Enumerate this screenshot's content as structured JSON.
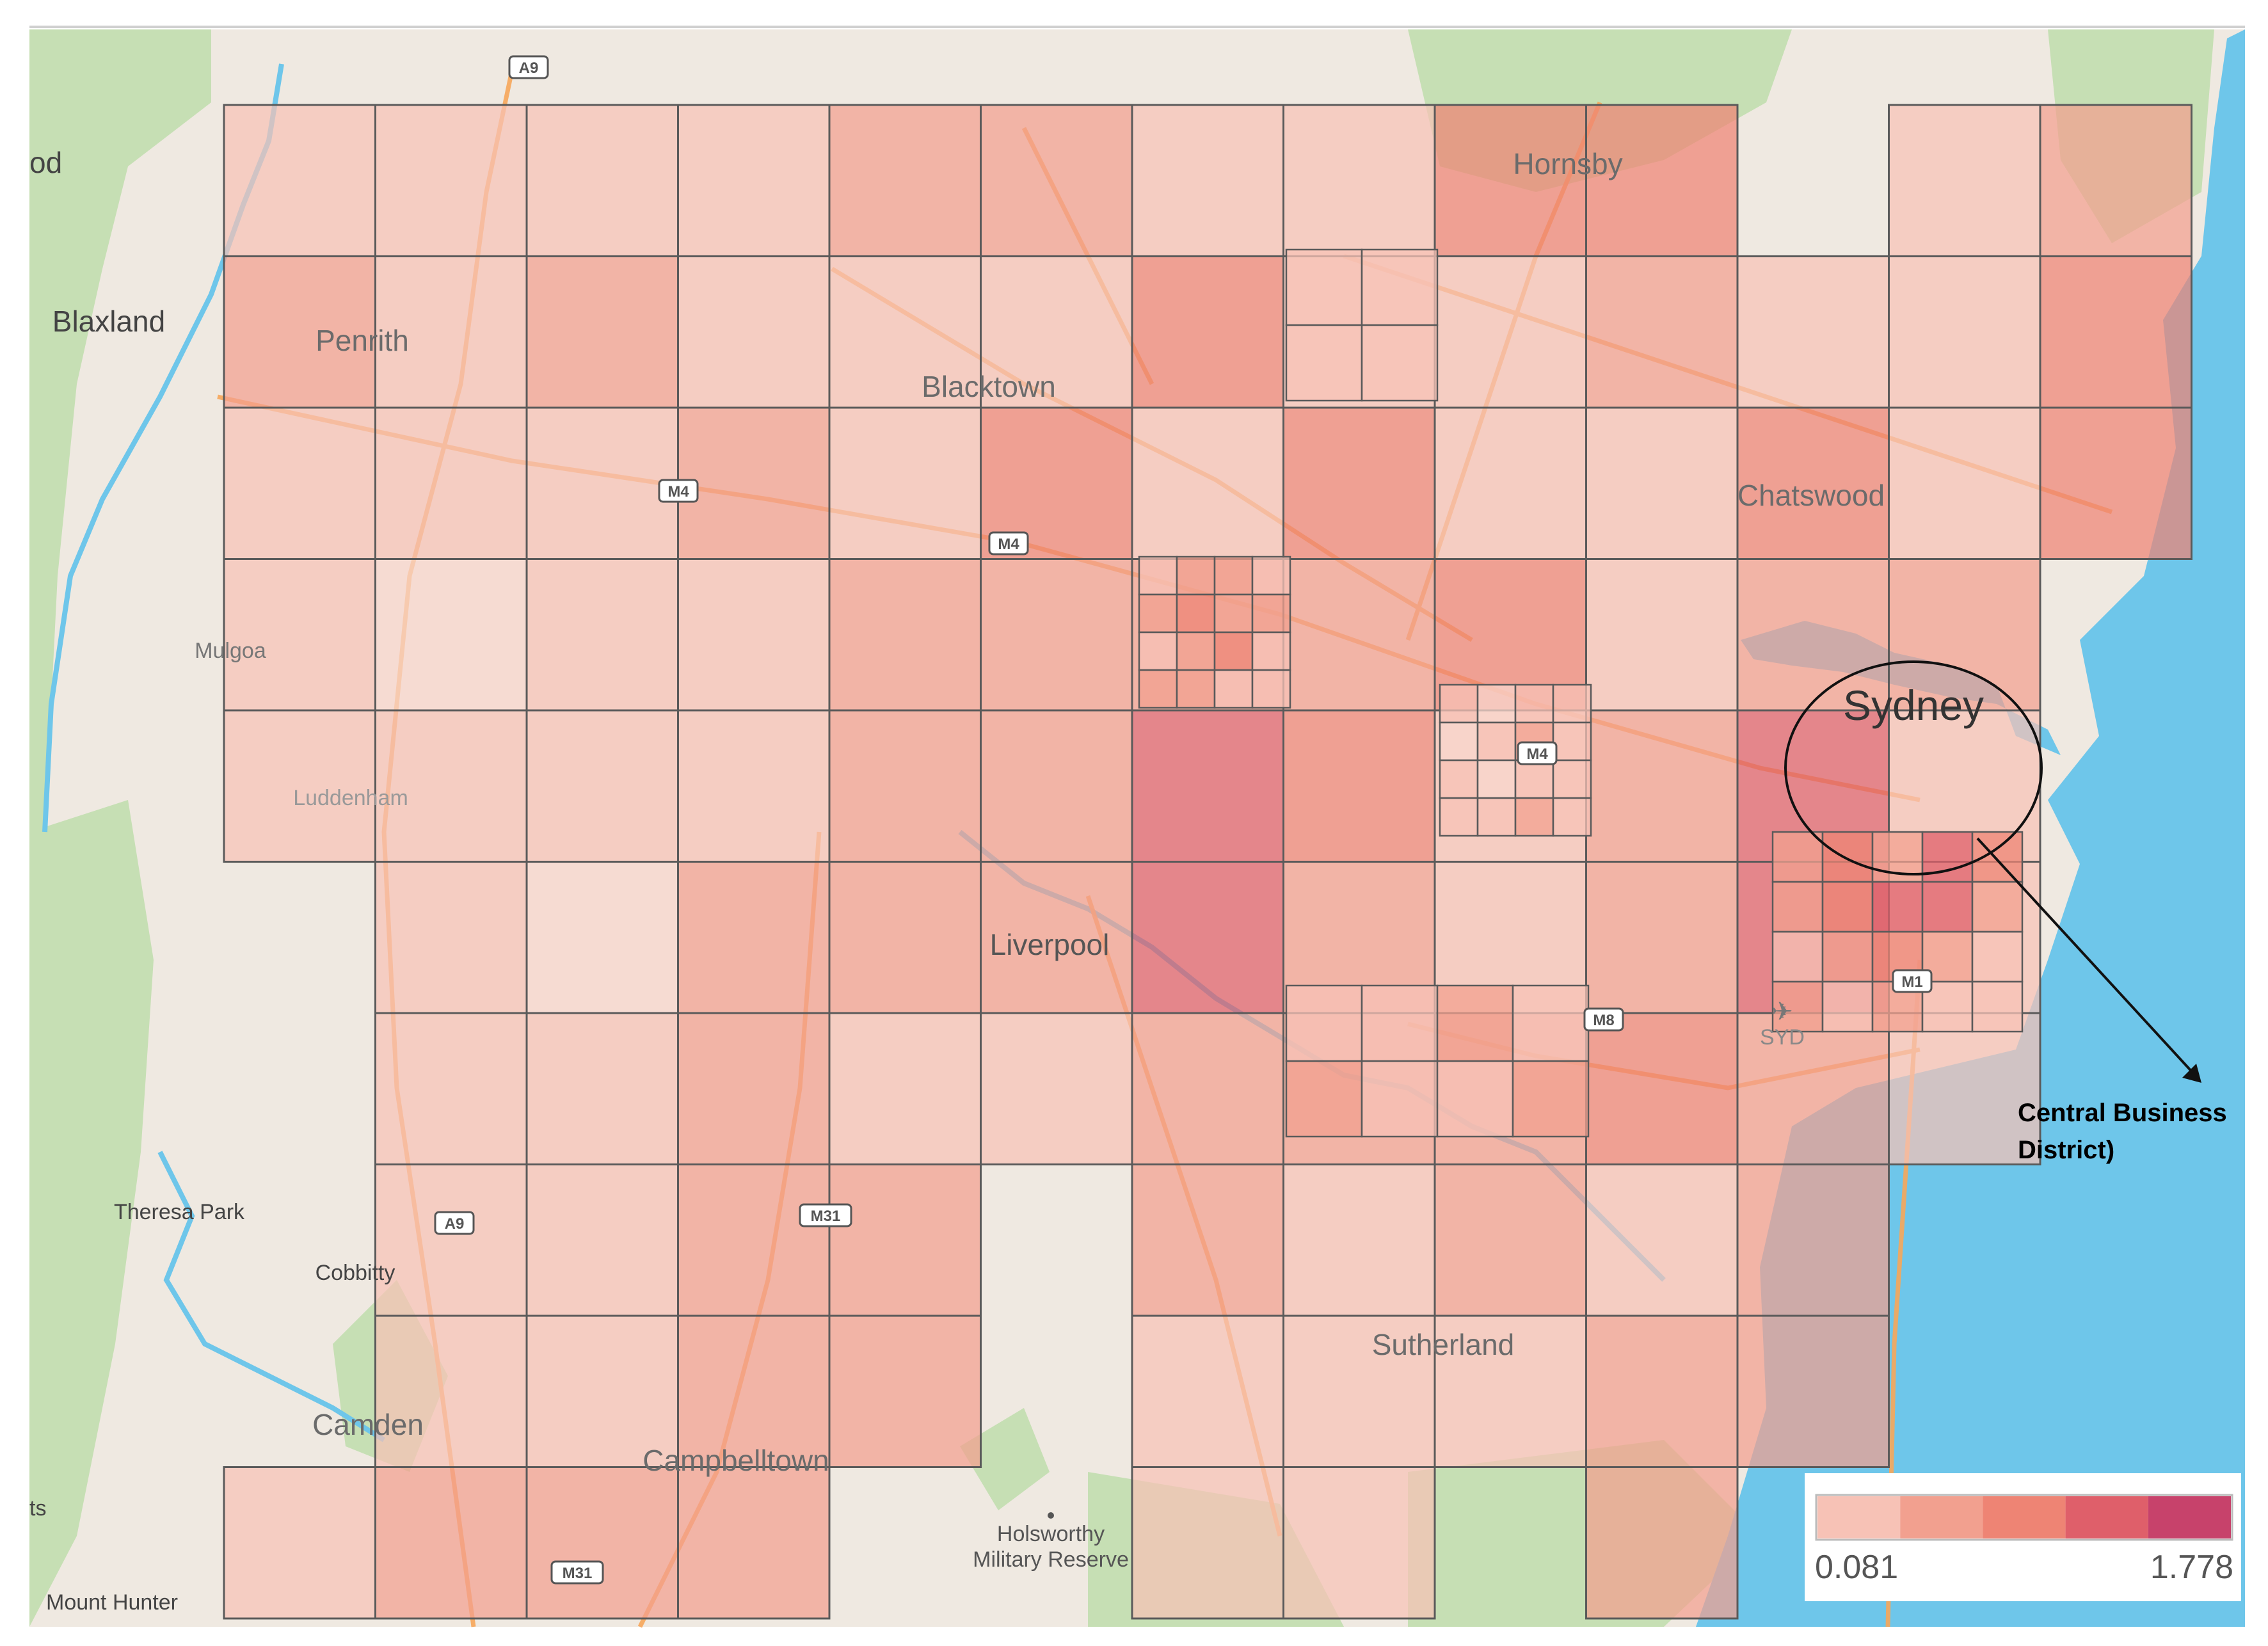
{
  "map": {
    "places": [
      {
        "name": "Hornsby",
        "kind": "city"
      },
      {
        "name": "Penrith",
        "kind": "city"
      },
      {
        "name": "Blacktown",
        "kind": "city"
      },
      {
        "name": "Chatswood",
        "kind": "city"
      },
      {
        "name": "Sydney",
        "kind": "cbd"
      },
      {
        "name": "Liverpool",
        "kind": "city"
      },
      {
        "name": "Sutherland",
        "kind": "city"
      },
      {
        "name": "Campbelltown",
        "kind": "city"
      },
      {
        "name": "Camden",
        "kind": "city"
      },
      {
        "name": "Blaxland",
        "kind": "town"
      },
      {
        "name": "Mulgoa",
        "kind": "small"
      },
      {
        "name": "Luddenham",
        "kind": "small"
      },
      {
        "name": "Theresa Park",
        "kind": "small"
      },
      {
        "name": "Cobbitty",
        "kind": "small"
      },
      {
        "name": "Mount Hunter",
        "kind": "small"
      },
      {
        "name": "Holsworthy",
        "kind": "small"
      },
      {
        "name": "Military Reserve",
        "kind": "small"
      },
      {
        "name": "SYD",
        "kind": "airport"
      },
      {
        "name": "od",
        "kind": "cut"
      },
      {
        "name": "ts",
        "kind": "cut"
      }
    ],
    "road_shields": [
      "A9",
      "M4",
      "M4",
      "M4",
      "M8",
      "M1",
      "A9",
      "M31",
      "M31"
    ],
    "annotation": {
      "line1": "Central Business",
      "line2": "District)"
    },
    "colors": {
      "water": "#6ec6ea",
      "land": "#efe8df",
      "park": "#bfdcae",
      "road": "#f6a65a",
      "grid_line": "#5a5a5a"
    }
  },
  "legend": {
    "min_label": "0.081",
    "max_label": "1.778",
    "min_value": 0.081,
    "max_value": 1.778,
    "swatches": [
      "#f7c2b6",
      "#f2a08f",
      "#ee8474",
      "#df5f6a",
      "#c7426b"
    ]
  }
}
